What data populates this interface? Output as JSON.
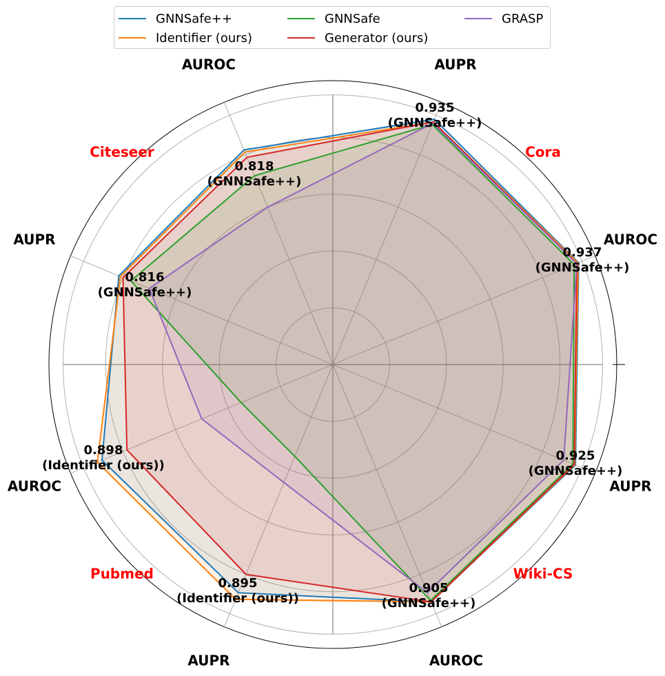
{
  "chart_data": {
    "type": "radar",
    "axes": [
      {
        "dataset": "Cora",
        "metric": "AUPR"
      },
      {
        "dataset": "Cora",
        "metric": "AUROC"
      },
      {
        "dataset": "Wiki-CS",
        "metric": "AUPR"
      },
      {
        "dataset": "Wiki-CS",
        "metric": "AUROC"
      },
      {
        "dataset": "Pubmed",
        "metric": "AUPR"
      },
      {
        "dataset": "Pubmed",
        "metric": "AUROC"
      },
      {
        "dataset": "Citeseer",
        "metric": "AUPR"
      },
      {
        "dataset": "Citeseer",
        "metric": "AUROC"
      }
    ],
    "datasets": [
      "Cora",
      "Wiki-CS",
      "Pubmed",
      "Citeseer"
    ],
    "series": [
      {
        "name": "GNNSafe++",
        "color": "#1f77b4",
        "values": [
          0.935,
          0.937,
          0.925,
          0.905,
          0.87,
          0.88,
          0.816,
          0.818
        ]
      },
      {
        "name": "Identifier (ours)",
        "color": "#ff7f0e",
        "values": [
          0.925,
          0.935,
          0.922,
          0.905,
          0.895,
          0.898,
          0.81,
          0.81
        ]
      },
      {
        "name": "GNNSafe",
        "color": "#2ca02c",
        "values": [
          0.915,
          0.92,
          0.915,
          0.9,
          0.35,
          0.35,
          0.77,
          0.72
        ]
      },
      {
        "name": "Generator (ours)",
        "color": "#d62728",
        "values": [
          0.925,
          0.93,
          0.92,
          0.905,
          0.8,
          0.785,
          0.8,
          0.79
        ]
      },
      {
        "name": "GRASP",
        "color": "#9467bd",
        "values": [
          0.92,
          0.93,
          0.88,
          0.87,
          0.45,
          0.5,
          0.7,
          0.6
        ]
      }
    ],
    "annotations": [
      {
        "value": "0.935",
        "label": "(GNNSafe++)"
      },
      {
        "value": "0.937",
        "label": "(GNNSafe++)"
      },
      {
        "value": "0.925",
        "label": "(GNNSafe++)"
      },
      {
        "value": "0.905",
        "label": "(GNNSafe++)"
      },
      {
        "value": "0.895",
        "label": "(Identifier (ours))"
      },
      {
        "value": "0.898",
        "label": "(Identifier (ours))"
      },
      {
        "value": "0.816",
        "label": "(GNNSafe++)"
      },
      {
        "value": "0.818",
        "label": "(GNNSafe++)"
      }
    ],
    "legend": {
      "position": "top",
      "columns": 3
    },
    "grid": true
  }
}
